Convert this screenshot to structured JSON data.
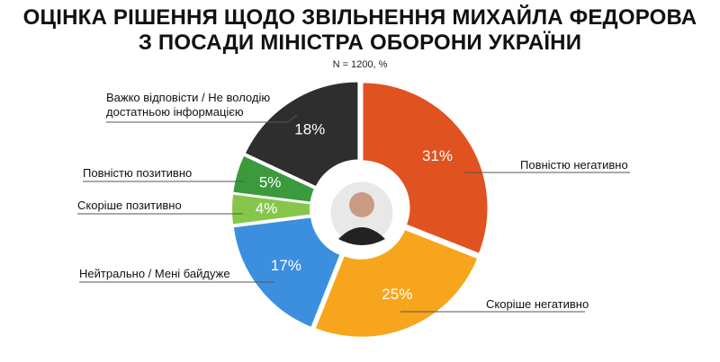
{
  "chart_data": {
    "type": "donut",
    "title": [
      "ОЦІНКА РІШЕННЯ ЩОДО ЗВІЛЬНЕННЯ МИХАЙЛА ФЕДОРОВА",
      "З ПОСАДИ МІНІСТРА ОБОРОНИ УКРАЇНИ"
    ],
    "subtitle": "N = 1200, %",
    "categories": [
      "Повністю негативно",
      "Скоріше негативно",
      "Нейтрально / Мені байдуже",
      "Скоріше позитивно",
      "Повністю позитивно",
      "Важко відповісти / Не володію достатньою інформацією"
    ],
    "values": [
      31,
      25,
      17,
      4,
      5,
      18
    ],
    "value_labels": [
      "31%",
      "25%",
      "17%",
      "4%",
      "5%",
      "18%"
    ],
    "colors": [
      "#e0521f",
      "#f7a51c",
      "#3c8fdf",
      "#86c64a",
      "#3a9a3c",
      "#2e2e2e"
    ]
  }
}
